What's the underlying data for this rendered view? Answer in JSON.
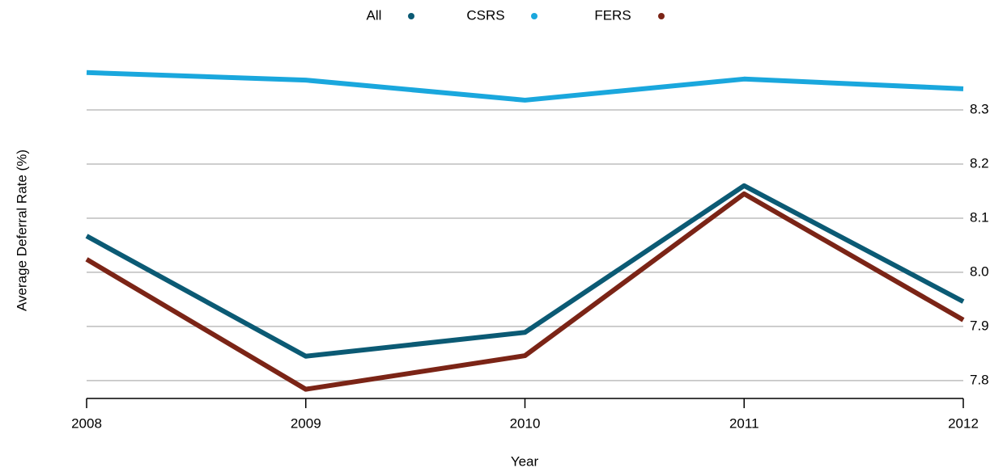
{
  "chart_data": {
    "type": "line",
    "x": [
      2008,
      2009,
      2010,
      2011,
      2012
    ],
    "series": [
      {
        "name": "All",
        "color": "#0b5a74",
        "values": [
          8.067,
          7.845,
          7.889,
          8.16,
          7.946
        ]
      },
      {
        "name": "CSRS",
        "color": "#1aa7dd",
        "values": [
          8.369,
          8.355,
          8.318,
          8.357,
          8.339
        ]
      },
      {
        "name": "FERS",
        "color": "#7b2416",
        "values": [
          8.024,
          7.784,
          7.846,
          8.145,
          7.912
        ]
      }
    ],
    "xlim": [
      2008,
      2012
    ],
    "xticks": [
      2008,
      2009,
      2010,
      2011,
      2012
    ],
    "ylim": [
      7.767,
      8.4
    ],
    "yticks": [
      {
        "value": 7.8,
        "label": "7.8"
      },
      {
        "value": 7.9,
        "label": "7.9"
      },
      {
        "value": 8.0,
        "label": "8.0"
      },
      {
        "value": 8.1,
        "label": "8.1"
      },
      {
        "value": 8.2,
        "label": "8.2"
      },
      {
        "value": 8.3,
        "label": "8.3"
      }
    ],
    "x_label": "Year",
    "y_label": "Average Deferral Rate (%)",
    "grid": true,
    "legend": "top"
  }
}
